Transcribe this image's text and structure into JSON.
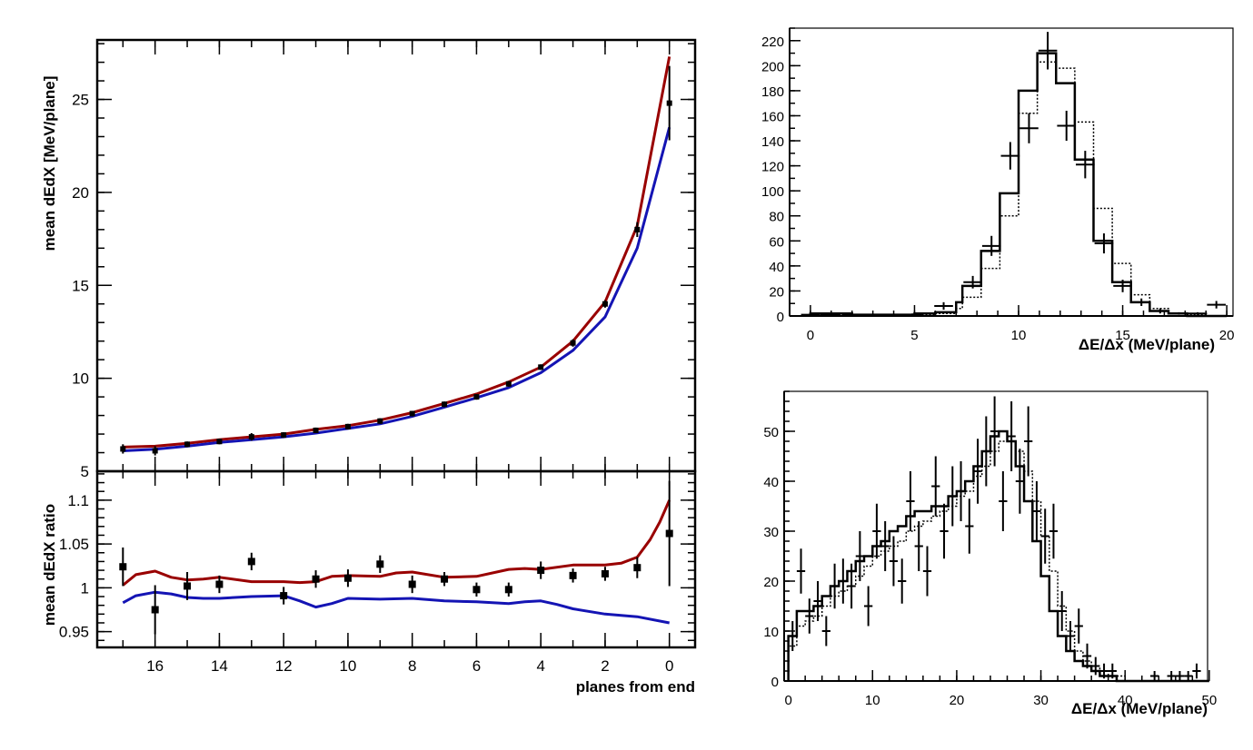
{
  "chart_data": [
    {
      "id": "main",
      "type": "line",
      "ylabel": "mean dEdX [MeV/plane]",
      "xlabel": "",
      "xlim": [
        17.8,
        -0.8
      ],
      "ylim": [
        5,
        28.2
      ],
      "x_ticks": [
        16,
        14,
        12,
        10,
        8,
        6,
        4,
        2,
        0
      ],
      "y_ticks": [
        5,
        10,
        15,
        20,
        25
      ],
      "x": [
        17,
        16,
        15,
        14,
        13,
        12,
        11,
        10,
        9,
        8,
        7,
        6,
        5,
        4,
        3,
        2,
        1,
        0
      ],
      "data_points": {
        "y": [
          6.2,
          6.1,
          6.45,
          6.6,
          6.85,
          6.95,
          7.2,
          7.4,
          7.7,
          8.1,
          8.6,
          9.0,
          9.7,
          10.6,
          11.9,
          14.0,
          18.0,
          24.8
        ],
        "yerr": [
          0.25,
          0.25,
          0.15,
          0.15,
          0.2,
          0.15,
          0.15,
          0.15,
          0.15,
          0.15,
          0.15,
          0.15,
          0.15,
          0.15,
          0.2,
          0.2,
          0.4,
          2.0
        ]
      },
      "series": [
        {
          "color": "#990000",
          "values": [
            6.3,
            6.35,
            6.5,
            6.7,
            6.85,
            7.0,
            7.25,
            7.45,
            7.75,
            8.15,
            8.65,
            9.15,
            9.8,
            10.6,
            12.0,
            14.1,
            18.2,
            27.3
          ]
        },
        {
          "color": "#1414b4",
          "values": [
            6.1,
            6.18,
            6.35,
            6.55,
            6.7,
            6.85,
            7.05,
            7.3,
            7.55,
            7.95,
            8.45,
            8.95,
            9.5,
            10.3,
            11.5,
            13.3,
            17.0,
            23.5
          ]
        }
      ]
    },
    {
      "id": "ratio",
      "type": "line",
      "ylabel": "mean dEdX ratio",
      "xlabel": "planes from end",
      "xlim": [
        17.8,
        -0.8
      ],
      "ylim": [
        0.932,
        1.133
      ],
      "x_ticks": [
        16,
        14,
        12,
        10,
        8,
        6,
        4,
        2,
        0
      ],
      "y_ticks": [
        0.95,
        1,
        1.05,
        1.1
      ],
      "y_tick_labels": [
        "0.95",
        "1",
        "1.05",
        "1.1"
      ],
      "x": [
        17,
        16,
        15,
        14,
        13,
        12,
        11,
        10,
        9,
        8,
        7,
        6,
        5,
        4,
        3,
        2,
        1,
        0
      ],
      "data_points": {
        "y": [
          1.024,
          0.975,
          1.002,
          1.004,
          1.03,
          0.991,
          1.01,
          1.011,
          1.027,
          1.004,
          1.01,
          0.998,
          0.998,
          1.02,
          1.014,
          1.016,
          1.023,
          1.062
        ],
        "yerr": [
          0.022,
          0.028,
          0.016,
          0.01,
          0.01,
          0.01,
          0.01,
          0.01,
          0.01,
          0.01,
          0.008,
          0.008,
          0.008,
          0.01,
          0.008,
          0.008,
          0.012,
          0.06
        ]
      },
      "series": [
        {
          "color": "#990000",
          "x": [
            17,
            16.6,
            16,
            15.5,
            15,
            14.5,
            14,
            13,
            12,
            11.5,
            11,
            10.5,
            10,
            9,
            8.5,
            8,
            7,
            6,
            5,
            4.5,
            4,
            3,
            2,
            1.5,
            1,
            0.6,
            0.3,
            0
          ],
          "values": [
            1.003,
            1.015,
            1.019,
            1.012,
            1.009,
            1.01,
            1.012,
            1.007,
            1.007,
            1.006,
            1.007,
            1.013,
            1.014,
            1.013,
            1.017,
            1.018,
            1.012,
            1.013,
            1.021,
            1.022,
            1.021,
            1.026,
            1.026,
            1.028,
            1.035,
            1.055,
            1.075,
            1.1
          ]
        },
        {
          "color": "#1414b4",
          "x": [
            17,
            16.6,
            16,
            15.5,
            15,
            14.5,
            14,
            13,
            12,
            11.5,
            11,
            10.5,
            10,
            9,
            8,
            7,
            6,
            5,
            4.5,
            4,
            3.5,
            3,
            2,
            1,
            0
          ],
          "values": [
            0.983,
            0.991,
            0.995,
            0.993,
            0.989,
            0.988,
            0.988,
            0.99,
            0.991,
            0.985,
            0.978,
            0.982,
            0.988,
            0.987,
            0.988,
            0.985,
            0.984,
            0.982,
            0.984,
            0.985,
            0.981,
            0.976,
            0.97,
            0.967,
            0.96
          ]
        }
      ]
    },
    {
      "id": "hist_top",
      "type": "histogram",
      "xlabel": "ΔE/Δx (MeV/plane)",
      "xlim": [
        -1,
        20.3
      ],
      "ylim": [
        0,
        230
      ],
      "x_ticks": [
        0,
        5,
        10,
        15,
        20
      ],
      "y_ticks": [
        0,
        20,
        40,
        60,
        80,
        100,
        120,
        140,
        160,
        180,
        200,
        220
      ],
      "bin_edges": [
        0,
        1,
        2,
        3,
        4,
        5,
        6,
        7,
        7.3,
        8.2,
        9.1,
        10,
        10.9,
        11.8,
        12.7,
        13.6,
        14.5,
        15.4,
        16.3,
        17.2,
        18.1,
        19,
        20
      ],
      "solid": [
        2,
        2,
        1,
        1,
        1,
        2,
        3,
        11,
        24,
        52,
        98,
        180,
        210,
        186,
        125,
        60,
        27,
        11,
        4,
        2,
        0,
        0
      ],
      "dotted": [
        1,
        1,
        1,
        1,
        1,
        1,
        2,
        6,
        15,
        38,
        80,
        162,
        203,
        198,
        155,
        86,
        42,
        17,
        6,
        2,
        1,
        0
      ],
      "points": {
        "x": [
          0,
          1,
          2,
          4.9,
          6.4,
          7.8,
          8.7,
          9.6,
          10.5,
          11.4,
          12.3,
          13.2,
          14.1,
          15,
          15.9,
          16.8,
          17.7,
          18.6,
          19.5
        ],
        "y": [
          1,
          1,
          1,
          1,
          8,
          27,
          56,
          128,
          150,
          212,
          152,
          121,
          58,
          24,
          11,
          4,
          2,
          2,
          9
        ],
        "xerr": 0.45,
        "yerr": [
          1,
          1,
          1,
          1,
          3,
          5,
          8,
          11,
          12,
          15,
          12,
          11,
          8,
          5,
          3,
          2,
          1,
          1,
          3
        ]
      }
    },
    {
      "id": "hist_bottom",
      "type": "histogram",
      "xlabel": "ΔE/Δx (MeV/plane)",
      "xlim": [
        -0.5,
        49.8
      ],
      "ylim": [
        0,
        58
      ],
      "x_ticks": [
        0,
        10,
        20,
        30,
        40,
        50
      ],
      "y_ticks": [
        0,
        10,
        20,
        30,
        40,
        50
      ],
      "solid": {
        "x": [
          0,
          1,
          2,
          3,
          4,
          5,
          6,
          7,
          8,
          9,
          10,
          11,
          12,
          13,
          14,
          15,
          16,
          17,
          18,
          19,
          20,
          21,
          22,
          23,
          24,
          25,
          26,
          27,
          28,
          29,
          30,
          31,
          32,
          33,
          34,
          35,
          36,
          37,
          38,
          39,
          40,
          41,
          42,
          43,
          44,
          45,
          46,
          47,
          48,
          49
        ],
        "values": [
          9,
          14,
          14,
          15,
          17,
          19,
          20,
          22,
          24,
          25,
          27,
          28,
          30,
          31,
          33,
          34,
          34,
          35,
          35,
          37,
          38,
          40,
          43,
          46,
          49,
          50,
          48,
          43,
          36,
          28,
          21,
          14,
          9,
          6,
          4,
          3,
          2,
          1,
          1,
          0,
          0,
          0,
          0,
          0,
          0,
          0,
          0,
          0,
          0,
          0
        ]
      },
      "dotted": {
        "x": [
          0,
          1,
          2,
          3,
          4,
          5,
          6,
          7,
          8,
          9,
          10,
          11,
          12,
          13,
          14,
          15,
          16,
          17,
          18,
          19,
          20,
          21,
          22,
          23,
          24,
          25,
          26,
          27,
          28,
          29,
          30,
          31,
          32,
          33,
          34,
          35,
          36,
          37,
          38,
          39,
          40,
          41,
          42,
          43,
          44,
          45,
          46,
          47,
          48,
          49
        ],
        "values": [
          7,
          11,
          12,
          13,
          15,
          17,
          18,
          19,
          21,
          23,
          25,
          26,
          27,
          28,
          30,
          31,
          32,
          33,
          34,
          35,
          37,
          38,
          41,
          43,
          46,
          48,
          48,
          46,
          42,
          36,
          29,
          22,
          15,
          10,
          6,
          4,
          3,
          2,
          1,
          1,
          0,
          0,
          0,
          0,
          0,
          0,
          0,
          0,
          0,
          0
        ]
      },
      "points": {
        "x": [
          0.5,
          1.5,
          2.5,
          3.5,
          4.5,
          5.5,
          6.5,
          7.5,
          8.5,
          9.5,
          10.5,
          11.5,
          12.5,
          13.5,
          14.5,
          15.5,
          16.5,
          17.5,
          18.5,
          19.5,
          20.5,
          21.5,
          22.5,
          23.5,
          24.5,
          25.5,
          26.5,
          27.5,
          28.5,
          29.5,
          30.5,
          31.5,
          32.5,
          33.5,
          34.5,
          35.5,
          36.5,
          37.5,
          38.5,
          43.5,
          45.5,
          46.5,
          47.5,
          48.5
        ],
        "y": [
          9,
          22,
          13,
          16,
          10,
          19,
          20,
          19,
          25,
          15,
          30,
          27,
          24,
          20,
          36,
          27,
          22,
          39,
          30,
          37,
          38,
          31,
          42,
          46,
          50,
          36,
          49,
          40,
          48,
          34,
          29,
          30,
          14,
          9,
          11,
          5,
          3,
          2,
          2,
          1,
          1,
          1,
          1,
          2
        ],
        "xerr": 0.5,
        "yerr": [
          3,
          4.5,
          3.5,
          4,
          3,
          4.5,
          4.5,
          4.5,
          5,
          4,
          5.5,
          5,
          5,
          4.5,
          6,
          5,
          5,
          6,
          5.5,
          6,
          6,
          5.5,
          6.5,
          7,
          7,
          6,
          7,
          6.5,
          7,
          6,
          5.5,
          5.5,
          4,
          3,
          3.5,
          2.5,
          1.8,
          1.5,
          1.5,
          1,
          1,
          1,
          1,
          1.5
        ]
      }
    }
  ]
}
